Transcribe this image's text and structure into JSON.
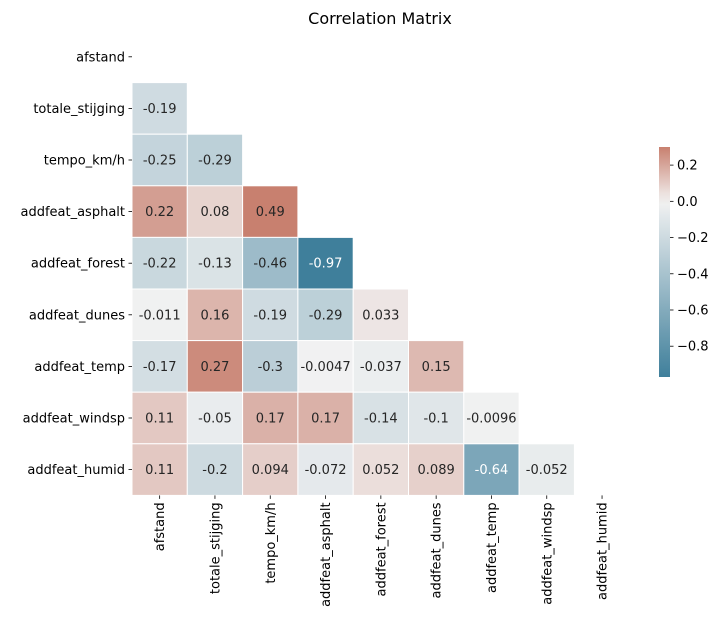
{
  "chart_data": {
    "type": "heatmap",
    "title": "Correlation Matrix",
    "xlabel": "",
    "ylabel": "",
    "labels": [
      "afstand",
      "totale_stijging",
      "tempo_km/h",
      "addfeat_asphalt",
      "addfeat_forest",
      "addfeat_dunes",
      "addfeat_temp",
      "addfeat_windsp",
      "addfeat_humid"
    ],
    "mask": "upper triangle including diagonal",
    "lower_triangle": [
      [],
      [
        "-0.19"
      ],
      [
        "-0.25",
        "-0.29"
      ],
      [
        "0.22",
        "0.08",
        "0.49"
      ],
      [
        "-0.22",
        "-0.13",
        "-0.46",
        "-0.97"
      ],
      [
        "-0.011",
        "0.16",
        "-0.19",
        "-0.29",
        "0.033"
      ],
      [
        "-0.17",
        "0.27",
        "-0.3",
        "-0.0047",
        "-0.037",
        "0.15"
      ],
      [
        "0.11",
        "-0.05",
        "0.17",
        "0.17",
        "-0.14",
        "-0.1",
        "-0.0096"
      ],
      [
        "0.11",
        "-0.2",
        "0.094",
        "-0.072",
        "0.052",
        "0.089",
        "-0.64",
        "-0.052"
      ]
    ],
    "colorbar": {
      "vmin": -0.97,
      "vmax": 0.3,
      "ticks": [
        "0.2",
        "0.0",
        "−0.2",
        "−0.4",
        "−0.6",
        "−0.8"
      ],
      "tick_values": [
        0.2,
        0.0,
        -0.2,
        -0.4,
        -0.6,
        -0.8
      ]
    },
    "colors": {
      "negative": "#3f7f9b",
      "center": "#f2f2f2",
      "positive": "#c8806f"
    }
  }
}
